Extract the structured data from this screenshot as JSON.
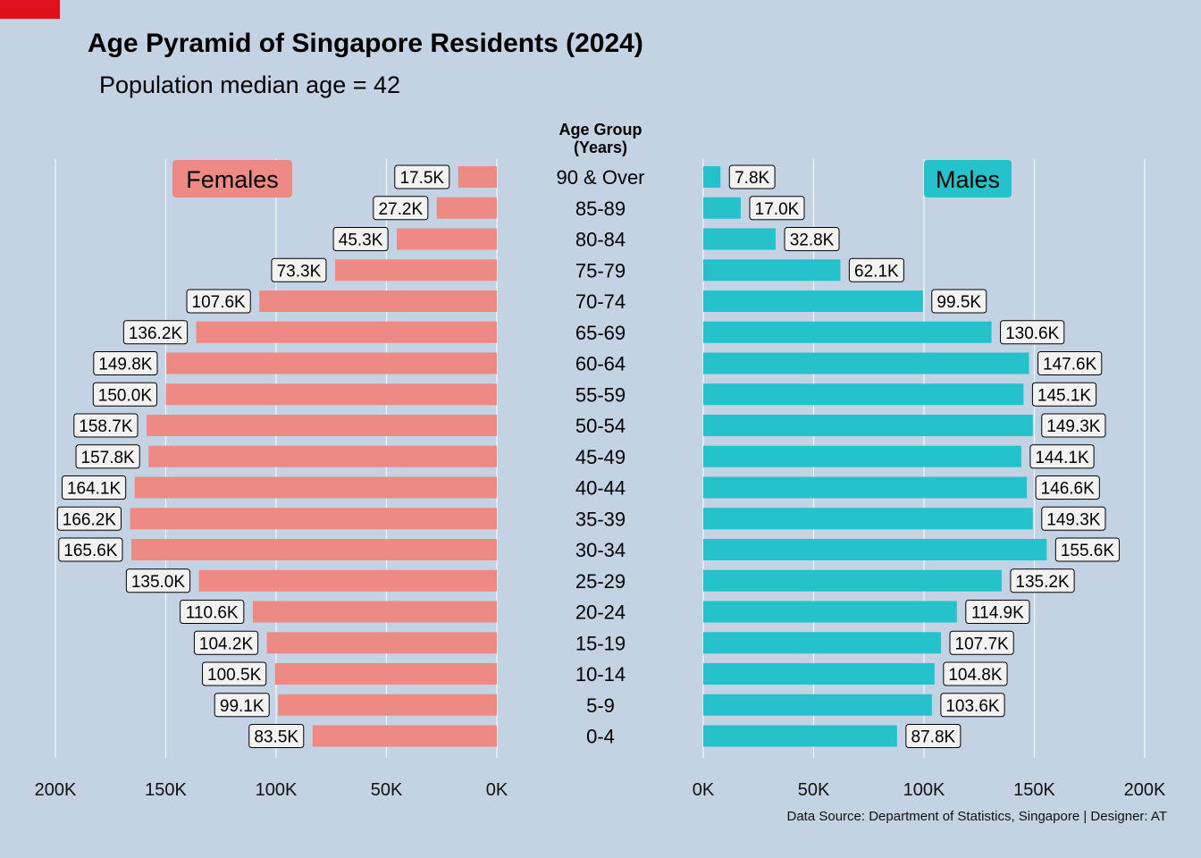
{
  "title": "Age Pyramid of Singapore Residents (2024)",
  "subtitle": "Population median age = 42",
  "caption": "Data Source: Department of Statistics, Singapore | Designer: AT",
  "colors": {
    "background": "#c3d3e4",
    "females": "#ee8a84",
    "males": "#26c2cc",
    "corner_mark": "#e0101f"
  },
  "chart_data": {
    "type": "bar",
    "orientation": "horizontal",
    "layout": "population-pyramid",
    "center_label_title": "Age Group\n(Years)",
    "categories": [
      "90 & Over",
      "85-89",
      "80-84",
      "75-79",
      "70-74",
      "65-69",
      "60-64",
      "55-59",
      "50-54",
      "45-49",
      "40-44",
      "35-39",
      "30-34",
      "25-29",
      "20-24",
      "15-19",
      "10-14",
      "5-9",
      "0-4"
    ],
    "series": [
      {
        "name": "Females",
        "side": "left",
        "values": [
          17.5,
          27.2,
          45.3,
          73.3,
          107.6,
          136.2,
          149.8,
          150.0,
          158.7,
          157.8,
          164.1,
          166.2,
          165.6,
          135.0,
          110.6,
          104.2,
          100.5,
          99.1,
          83.5
        ],
        "labels": [
          "17.5K",
          "27.2K",
          "45.3K",
          "73.3K",
          "107.6K",
          "136.2K",
          "149.8K",
          "150.0K",
          "158.7K",
          "157.8K",
          "164.1K",
          "166.2K",
          "165.6K",
          "135.0K",
          "110.6K",
          "104.2K",
          "100.5K",
          "99.1K",
          "83.5K"
        ]
      },
      {
        "name": "Males",
        "side": "right",
        "values": [
          7.8,
          17.0,
          32.8,
          62.1,
          99.5,
          130.6,
          147.6,
          145.1,
          149.3,
          144.1,
          146.6,
          149.3,
          155.6,
          135.2,
          114.9,
          107.7,
          104.8,
          103.6,
          87.8
        ],
        "labels": [
          "7.8K",
          "17.0K",
          "32.8K",
          "62.1K",
          "99.5K",
          "130.6K",
          "147.6K",
          "145.1K",
          "149.3K",
          "144.1K",
          "146.6K",
          "149.3K",
          "155.6K",
          "135.2K",
          "114.9K",
          "107.7K",
          "104.8K",
          "103.6K",
          "87.8K"
        ]
      }
    ],
    "value_unit": "thousands",
    "xlim": [
      0,
      200
    ],
    "ticks": [
      0,
      50,
      100,
      150,
      200
    ],
    "tick_labels": [
      "0K",
      "50K",
      "100K",
      "150K",
      "200K"
    ],
    "grid": "vertical major only"
  }
}
